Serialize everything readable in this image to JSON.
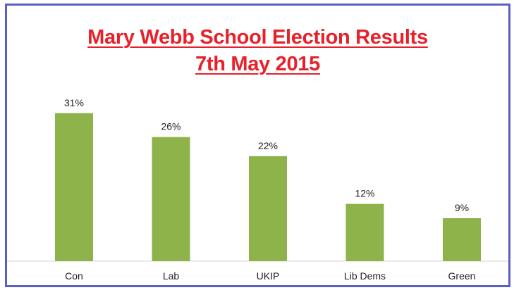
{
  "chart_data": {
    "type": "bar",
    "title": "Mary Webb School Election Results",
    "subtitle": "7th May 2015",
    "categories": [
      "Con",
      "Lab",
      "UKIP",
      "Lib Dems",
      "Green"
    ],
    "values": [
      31,
      26,
      22,
      12,
      9
    ],
    "value_labels": [
      "31%",
      "26%",
      "22%",
      "12%",
      "9%"
    ],
    "ylim": [
      0,
      32
    ],
    "grid": false,
    "legend": "none",
    "bar_color": "#8db34a",
    "title_color": "#e8202a",
    "border_color": "#5a5fc4"
  }
}
